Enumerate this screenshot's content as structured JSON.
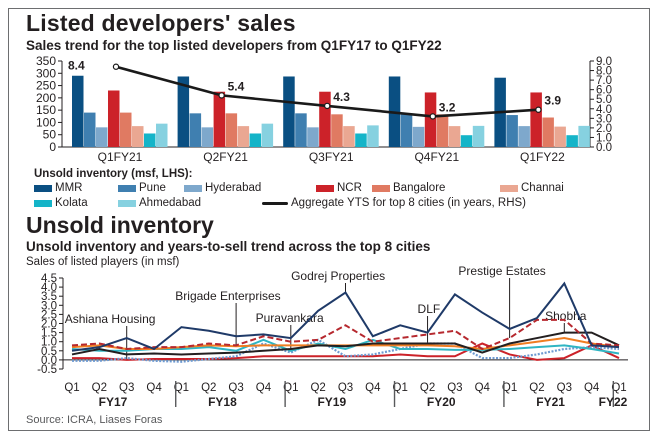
{
  "source": "Source: ICRA, Liases Foras",
  "chart_data": [
    {
      "type": "bar",
      "title": "Listed developers' sales",
      "subtitle": "Sales trend for the top listed developers from Q1FY17 to Q1FY22",
      "categories": [
        "Q1FY21",
        "Q2FY21",
        "Q3FY21",
        "Q4FY21",
        "Q1FY22"
      ],
      "ylim": [
        0,
        350
      ],
      "yticks": [
        0,
        50,
        100,
        150,
        200,
        250,
        300,
        350
      ],
      "y2lim": [
        0,
        9
      ],
      "y2ticks": [
        "0.0",
        "1.0",
        "2.0",
        "3.0",
        "4.0",
        "5.0",
        "6.0",
        "7.0",
        "8.0",
        "9.0"
      ],
      "legend_title": "Unsold inventory (msf, LHS):",
      "series": [
        {
          "name": "MMR",
          "color": "#0a4f82",
          "values": [
            290,
            287,
            287,
            287,
            282
          ]
        },
        {
          "name": "Pune",
          "color": "#3f7fb0",
          "values": [
            140,
            137,
            137,
            135,
            130
          ]
        },
        {
          "name": "Hyderabad",
          "color": "#7ea8cc",
          "values": [
            80,
            80,
            80,
            82,
            85
          ]
        },
        {
          "name": "NCR",
          "color": "#cc2229",
          "values": [
            230,
            225,
            225,
            222,
            222
          ]
        },
        {
          "name": "Bangalore",
          "color": "#e07a62",
          "values": [
            140,
            137,
            133,
            133,
            120
          ]
        },
        {
          "name": "Channai",
          "color": "#eaa792",
          "values": [
            85,
            85,
            85,
            85,
            83
          ]
        },
        {
          "name": "Kolata",
          "color": "#14b4c8",
          "values": [
            55,
            55,
            55,
            48,
            48
          ]
        },
        {
          "name": "Ahmedabad",
          "color": "#86d1e0",
          "values": [
            95,
            95,
            88,
            86,
            86
          ]
        }
      ],
      "line_series": {
        "name": "Aggregate YTS for top 8 cities (in years, RHS)",
        "color": "#1a1a1a",
        "values": [
          8.4,
          5.4,
          4.3,
          3.2,
          3.9
        ],
        "labels": [
          "8.4",
          "5.4",
          "4.3",
          "3.2",
          "3.9"
        ]
      }
    },
    {
      "type": "line",
      "title": "Unsold inventory",
      "subtitle": "Unsold inventory and years-to-sell trend across the top 8 cities",
      "ylabel": "Sales of listed players (in msf)",
      "ylim": [
        -0.5,
        4.5
      ],
      "yticks": [
        "-0.5",
        "0.0",
        "0.5",
        "1.0",
        "1.5",
        "2.0",
        "2.5",
        "3.0",
        "3.5",
        "4.0",
        "4.5"
      ],
      "x": [
        "Q1",
        "Q2",
        "Q3",
        "Q4",
        "Q1",
        "Q2",
        "Q3",
        "Q4",
        "Q1",
        "Q2",
        "Q3",
        "Q4",
        "Q1",
        "Q2",
        "Q3",
        "Q4",
        "Q1",
        "Q2",
        "Q3",
        "Q4",
        "Q1"
      ],
      "fiscal_years": [
        "FY17",
        "FY18",
        "FY19",
        "FY20",
        "FY21",
        "FY22"
      ],
      "series": [
        {
          "name": "Godrej Properties",
          "color": "#1f3a68",
          "style": "solid",
          "values": [
            0.5,
            0.7,
            1.2,
            0.6,
            1.8,
            1.6,
            1.3,
            1.4,
            1.2,
            2.7,
            3.7,
            1.3,
            1.9,
            1.5,
            3.6,
            2.6,
            1.7,
            2.3,
            4.2,
            0.8,
            0.7
          ]
        },
        {
          "name": "Prestige Estates",
          "color": "#b6282e",
          "style": "dashed",
          "values": [
            0.8,
            0.9,
            0.6,
            0.7,
            0.7,
            0.9,
            0.8,
            1.3,
            1.0,
            1.1,
            1.9,
            1.0,
            1.2,
            1.4,
            1.6,
            0.6,
            1.2,
            2.2,
            2.2,
            0.9,
            0.8
          ]
        },
        {
          "name": "Shobha",
          "color": "#231f20",
          "style": "solid",
          "values": [
            0.3,
            0.6,
            0.3,
            0.35,
            0.3,
            0.35,
            0.4,
            0.5,
            0.6,
            0.8,
            0.75,
            0.9,
            0.9,
            0.9,
            0.9,
            0.4,
            0.9,
            1.2,
            1.5,
            1.5,
            0.8
          ]
        },
        {
          "name": "Brigade Enterprises",
          "color": "#ef7d22",
          "style": "solid",
          "values": [
            0.7,
            0.8,
            0.6,
            0.6,
            0.7,
            0.8,
            0.75,
            0.8,
            0.8,
            0.8,
            0.8,
            0.8,
            0.8,
            0.8,
            0.75,
            0.6,
            0.8,
            1.0,
            1.2,
            0.9,
            0.7
          ]
        },
        {
          "name": "Puravankara",
          "color": "#2fb5c3",
          "style": "solid",
          "values": [
            0.6,
            0.5,
            0.5,
            0.6,
            0.6,
            0.7,
            0.5,
            1.1,
            0.5,
            0.9,
            0.6,
            1.1,
            0.6,
            0.6,
            0.55,
            0.55,
            0.6,
            0.7,
            0.8,
            0.6,
            0.35
          ]
        },
        {
          "name": "DLF",
          "color": "#6e9ad1",
          "style": "dotted",
          "values": [
            -0.05,
            -0.05,
            0.1,
            -0.05,
            -0.1,
            0.05,
            0.2,
            0.9,
            0.4,
            1.1,
            0.2,
            0.3,
            0.6,
            0.9,
            0.9,
            0.1,
            0.1,
            0.3,
            0.6,
            0.7,
            0.6
          ]
        },
        {
          "name": "Ashiana Housing",
          "color": "#cc2229",
          "style": "solid",
          "values": [
            0.1,
            0.1,
            0.0,
            0.05,
            0.05,
            0.05,
            0.1,
            0.2,
            0.2,
            0.2,
            0.2,
            0.2,
            0.3,
            0.2,
            0.2,
            0.9,
            0.3,
            0.0,
            0.1,
            0.8,
            0.1
          ]
        }
      ],
      "annotations": [
        {
          "text": "Ashiana Housing",
          "x_index": 2
        },
        {
          "text": "Brigade Enterprises",
          "x_index": 6
        },
        {
          "text": "Puravankara",
          "x_index": 8
        },
        {
          "text": "Godrej Properties",
          "x_index": 10
        },
        {
          "text": "DLF",
          "x_index": 13
        },
        {
          "text": "Prestige Estates",
          "x_index": 16
        },
        {
          "text": "Shobha",
          "x_index": 18
        }
      ]
    }
  ]
}
